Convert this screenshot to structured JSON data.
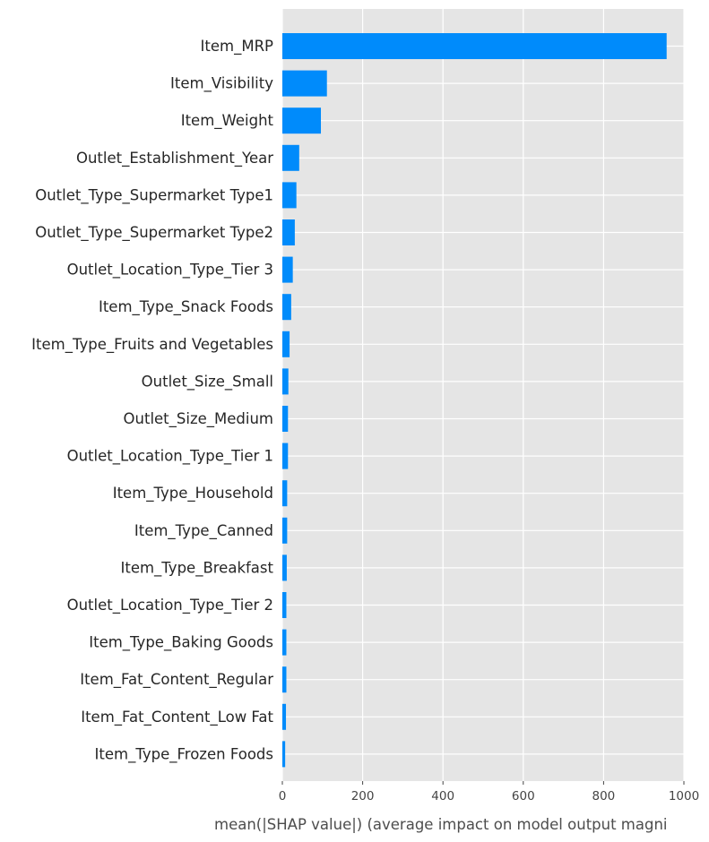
{
  "chart_data": {
    "type": "bar",
    "orientation": "horizontal",
    "categories": [
      "Item_MRP",
      "Item_Visibility",
      "Item_Weight",
      "Outlet_Establishment_Year",
      "Outlet_Type_Supermarket Type1",
      "Outlet_Type_Supermarket Type2",
      "Outlet_Location_Type_Tier 3",
      "Item_Type_Snack Foods",
      "Item_Type_Fruits and Vegetables",
      "Outlet_Size_Small",
      "Outlet_Size_Medium",
      "Outlet_Location_Type_Tier 1",
      "Item_Type_Household",
      "Item_Type_Canned",
      "Item_Type_Breakfast",
      "Outlet_Location_Type_Tier 2",
      "Item_Type_Baking Goods",
      "Item_Fat_Content_Regular",
      "Item_Fat_Content_Low Fat",
      "Item_Type_Frozen Foods"
    ],
    "values": [
      957,
      111,
      96,
      42,
      35,
      31,
      26,
      22,
      18,
      15,
      14,
      14,
      12,
      12,
      11,
      10,
      10,
      10,
      9,
      7
    ],
    "xlabel": "mean(|SHAP value|) (average impact on model output magni",
    "ylabel": "",
    "xlim": [
      0,
      1000
    ],
    "xticks": [
      0,
      200,
      400,
      600,
      800,
      1000
    ],
    "xtick_labels": [
      "0",
      "200",
      "400",
      "600",
      "800",
      "1000"
    ],
    "grid": true,
    "legend": "none",
    "colors": {
      "bar": "#008bfb",
      "plot_background": "#e5e5e5",
      "grid": "#ffffff"
    }
  }
}
